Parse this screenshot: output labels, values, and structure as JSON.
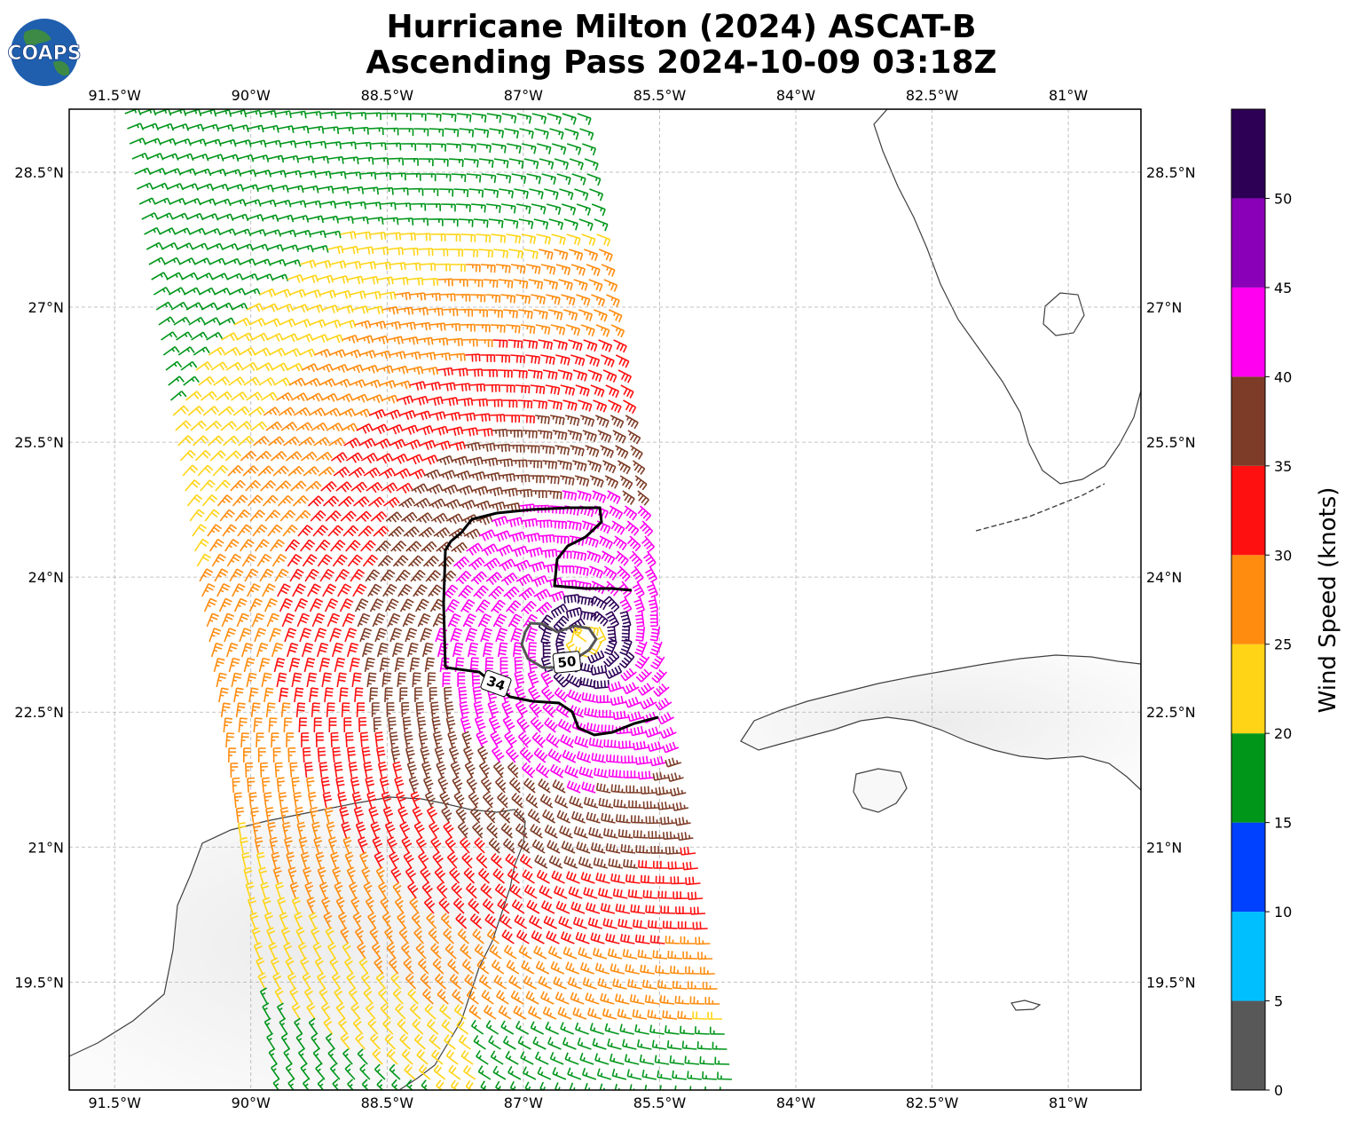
{
  "title": {
    "line1": "Hurricane Milton (2024) ASCAT-B",
    "line2": "Ascending Pass 2024-10-09 03:18Z"
  },
  "logo": {
    "text": "COAPS",
    "icon": "globe-logo-icon"
  },
  "map": {
    "lon_range": [
      -92.0,
      -80.2
    ],
    "lat_range": [
      18.3,
      29.2
    ],
    "lon_ticks": [
      {
        "value": -91.5,
        "label": "91.5°W"
      },
      {
        "value": -90.0,
        "label": "90°W"
      },
      {
        "value": -88.5,
        "label": "88.5°W"
      },
      {
        "value": -87.0,
        "label": "87°W"
      },
      {
        "value": -85.5,
        "label": "85.5°W"
      },
      {
        "value": -84.0,
        "label": "84°W"
      },
      {
        "value": -82.5,
        "label": "82.5°W"
      },
      {
        "value": -81.0,
        "label": "81°W"
      }
    ],
    "lat_ticks": [
      {
        "value": 28.5,
        "label": "28.5°N"
      },
      {
        "value": 27.0,
        "label": "27°N"
      },
      {
        "value": 25.5,
        "label": "25.5°N"
      },
      {
        "value": 24.0,
        "label": "24°N"
      },
      {
        "value": 22.5,
        "label": "22.5°N"
      },
      {
        "value": 21.0,
        "label": "21°N"
      },
      {
        "value": 19.5,
        "label": "19.5°N"
      }
    ],
    "gridlines": true,
    "storm_center": {
      "lon": -86.3,
      "lat": 23.3
    },
    "contour_labels": [
      {
        "text": "34",
        "lon": -87.1,
        "lat": 22.87
      },
      {
        "text": "50",
        "lon": -86.3,
        "lat": 23.08
      }
    ]
  },
  "colorbar": {
    "label": "Wind Speed (knots)",
    "range": [
      0,
      55
    ],
    "bins": [
      {
        "from": 0,
        "to": 5,
        "color": "#585858"
      },
      {
        "from": 5,
        "to": 10,
        "color": "#00bfff"
      },
      {
        "from": 10,
        "to": 15,
        "color": "#0040ff"
      },
      {
        "from": 15,
        "to": 20,
        "color": "#00961a"
      },
      {
        "from": 20,
        "to": 25,
        "color": "#ffd416"
      },
      {
        "from": 25,
        "to": 30,
        "color": "#ff8c0f"
      },
      {
        "from": 30,
        "to": 35,
        "color": "#ff1010"
      },
      {
        "from": 35,
        "to": 40,
        "color": "#7d3c27"
      },
      {
        "from": 40,
        "to": 45,
        "color": "#ff00f0"
      },
      {
        "from": 45,
        "to": 50,
        "color": "#8a00b8"
      },
      {
        "from": 50,
        "to": 55,
        "color": "#2d0056"
      }
    ],
    "ticks": [
      {
        "value": 0,
        "label": "0"
      },
      {
        "value": 5,
        "label": "5"
      },
      {
        "value": 10,
        "label": "10"
      },
      {
        "value": 15,
        "label": "15"
      },
      {
        "value": 20,
        "label": "20"
      },
      {
        "value": 25,
        "label": "25"
      },
      {
        "value": 30,
        "label": "30"
      },
      {
        "value": 35,
        "label": "35"
      },
      {
        "value": 40,
        "label": "40"
      },
      {
        "value": 45,
        "label": "45"
      },
      {
        "value": 50,
        "label": "50"
      }
    ]
  }
}
